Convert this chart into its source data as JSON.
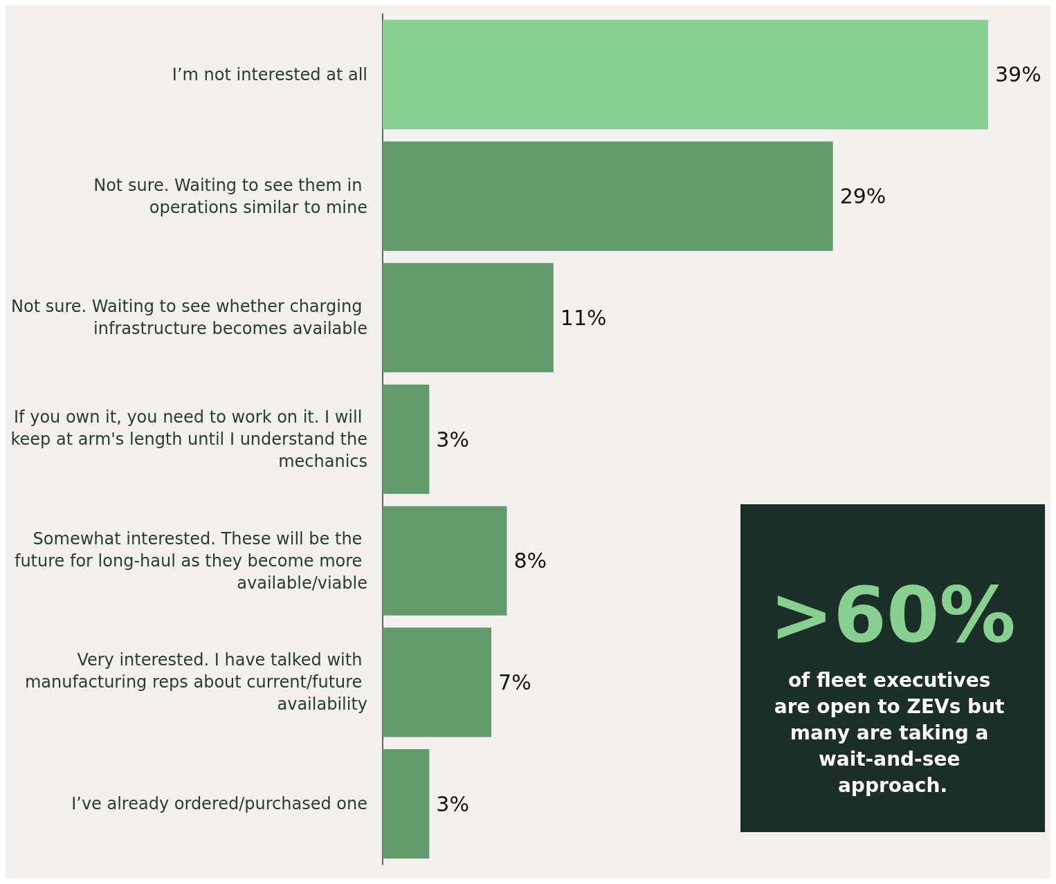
{
  "chart_data": {
    "type": "bar",
    "orientation": "horizontal",
    "categories": [
      "I’m not interested at all",
      "Not sure. Waiting to see them in operations similar to mine",
      "Not sure. Waiting to see whether charging infrastructure becomes available",
      "If you own it, you need to work on it. I will keep at arm's length until I understand the mechanics",
      "Somewhat interested. These will be the future for long-haul as they become more available/viable",
      "Very interested. I have talked with manufacturing reps about current/future availability",
      "I’ve already ordered/purchased one"
    ],
    "values": [
      39,
      29,
      11,
      3,
      8,
      7,
      3
    ],
    "colors": [
      "#88d090",
      "#639b6d",
      "#639b6d",
      "#639b6d",
      "#639b6d",
      "#639b6d",
      "#639b6d"
    ],
    "value_labels": [
      "39%",
      "29%",
      "11%",
      "3%",
      "8%",
      "7%",
      "3%"
    ],
    "annotations": [
      ">60%",
      "of fleet executives are open to ZEVs but many are taking a wait-and-see approach."
    ]
  }
}
